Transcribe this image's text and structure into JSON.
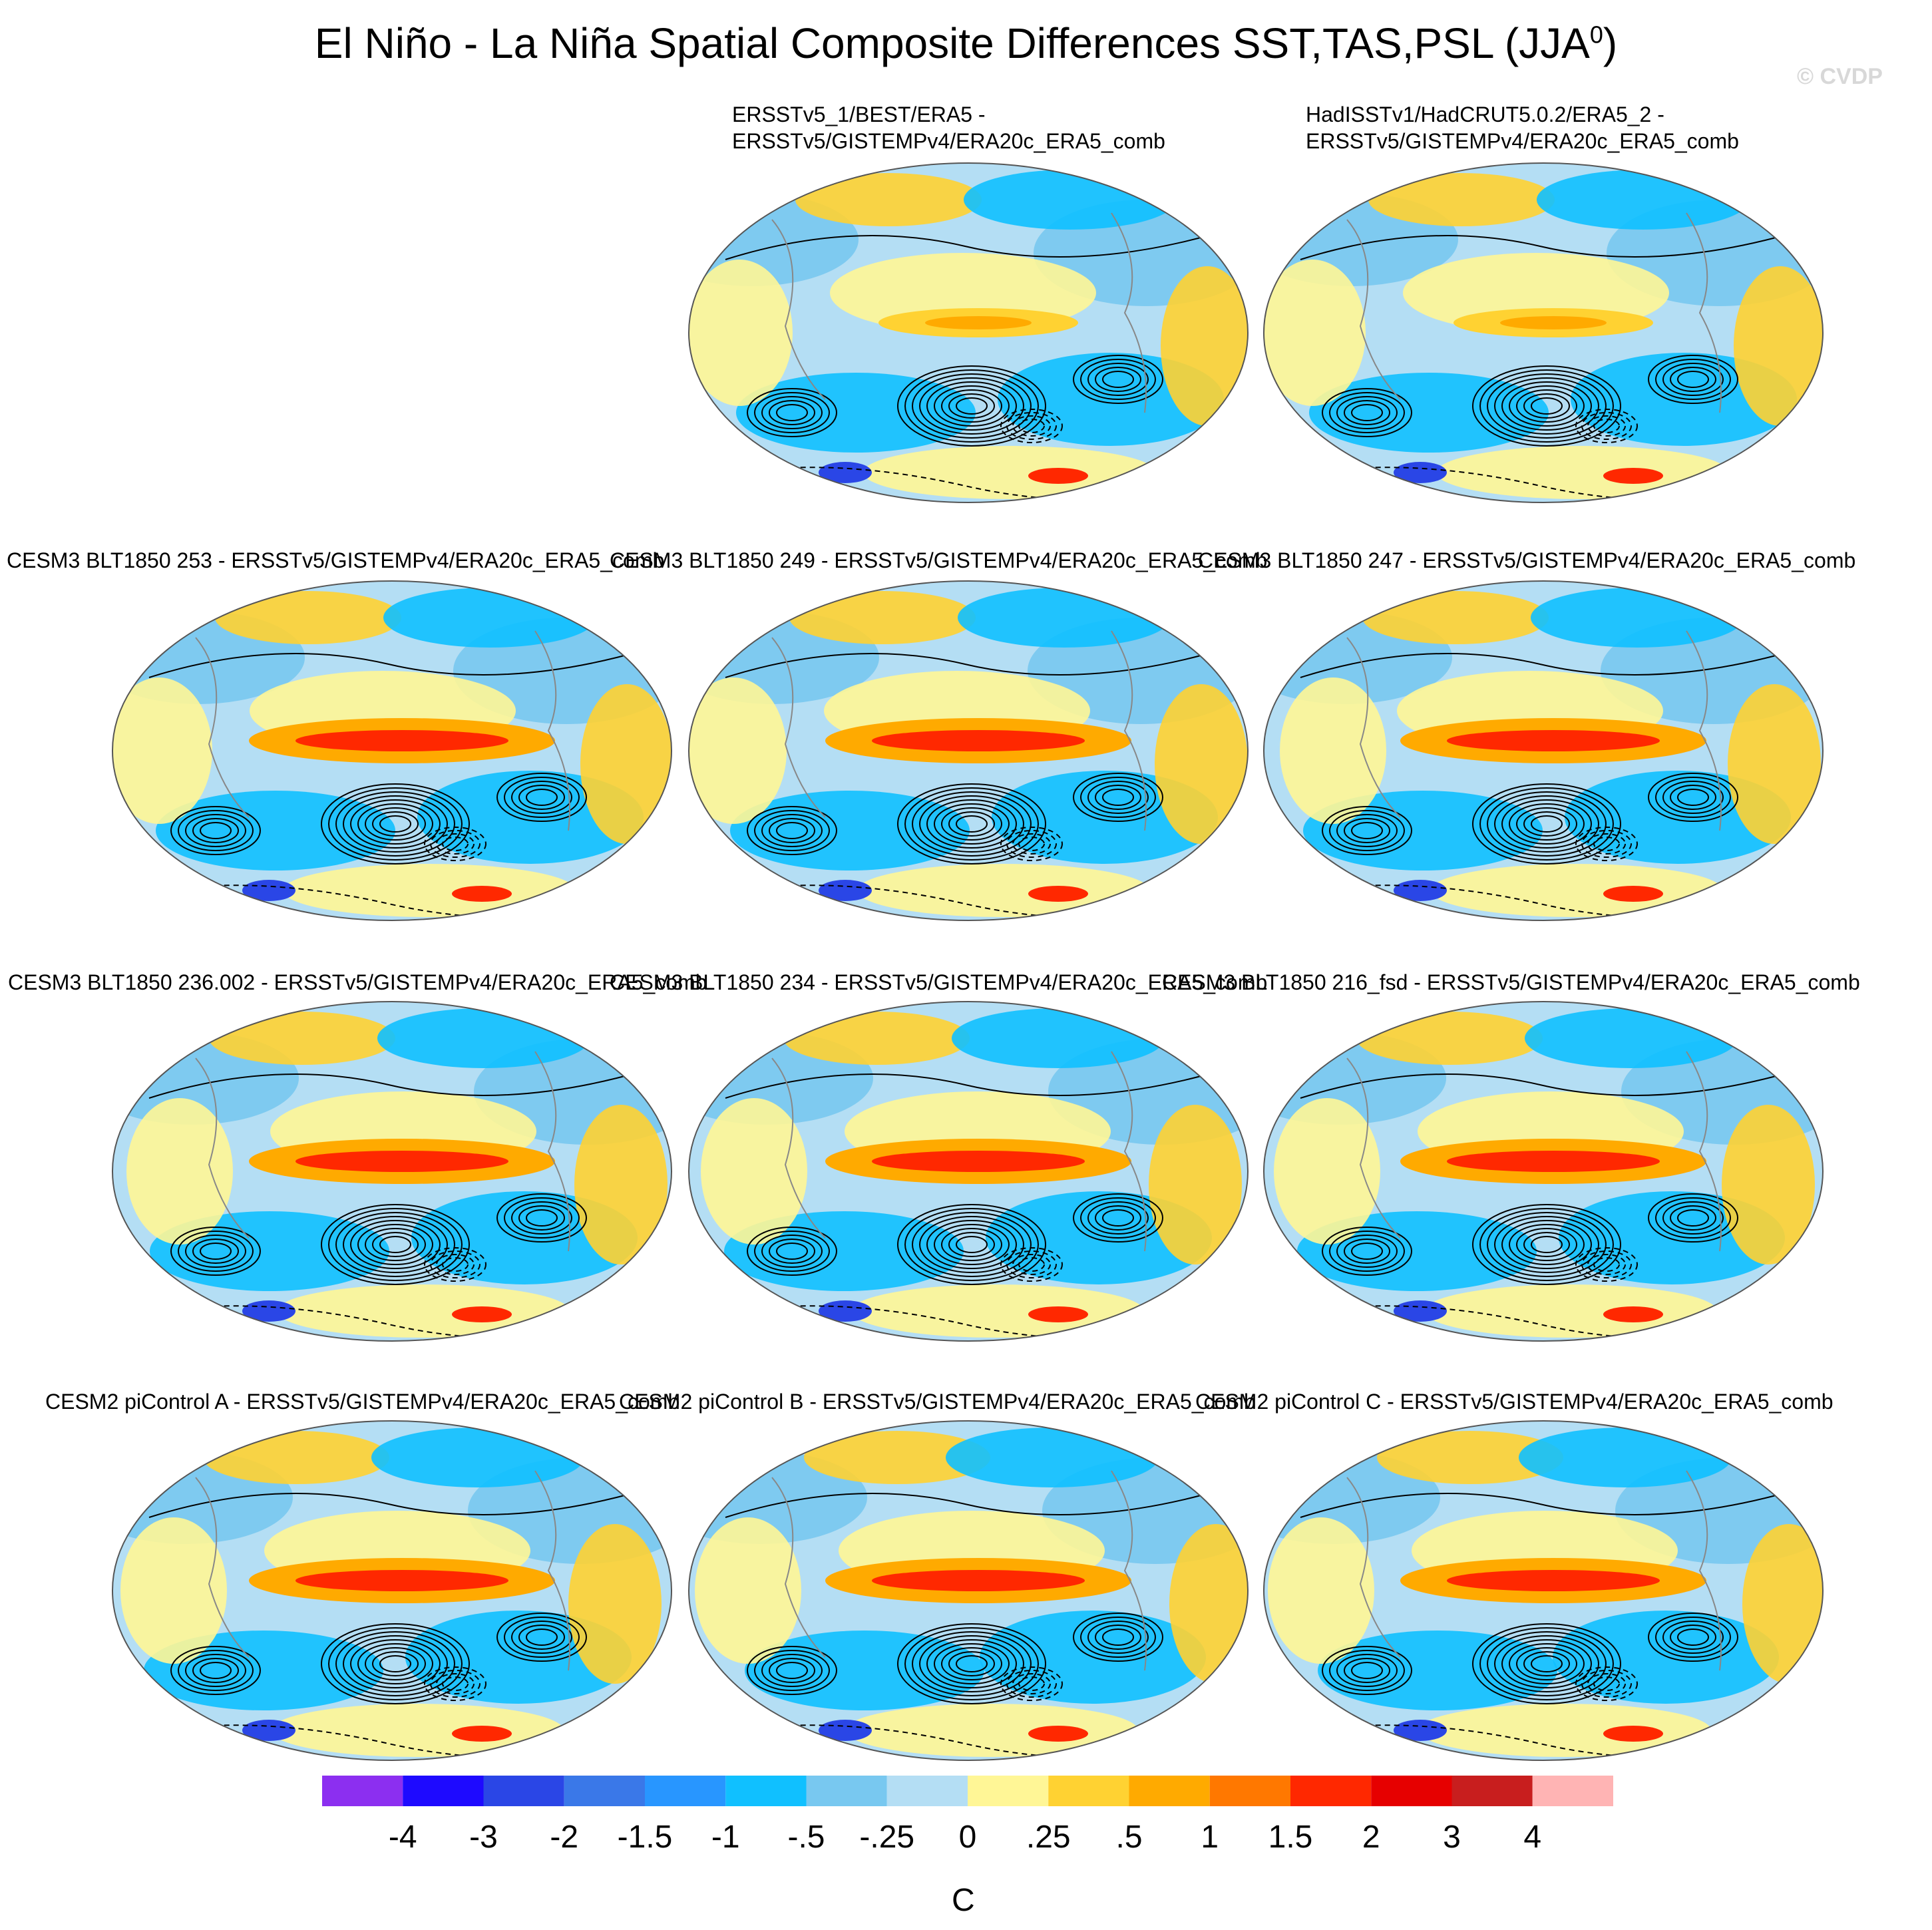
{
  "title": "El Niño - La Niña Spatial Composite Differences SST,TAS,PSL (JJA",
  "title_superscript": "0",
  "title_suffix": ")",
  "credit": "© CVDP",
  "panels": [
    {
      "title_line1": "ERSSTv5_1/BEST/ERA5 -",
      "title_line2": "ERSSTv5/GISTEMPv4/ERA20c_ERA5_comb"
    },
    {
      "title_line1": "HadISSTv1/HadCRUT5.0.2/ERA5_2 -",
      "title_line2": "ERSSTv5/GISTEMPv4/ERA20c_ERA5_comb"
    },
    {
      "title": "CESM3 BLT1850 253 - ERSSTv5/GISTEMPv4/ERA20c_ERA5_comb"
    },
    {
      "title": "CESM3 BLT1850 249 - ERSSTv5/GISTEMPv4/ERA20c_ERA5_comb"
    },
    {
      "title": "CESM3 BLT1850 247 - ERSSTv5/GISTEMPv4/ERA20c_ERA5_comb"
    },
    {
      "title": "CESM3 BLT1850 236.002 - ERSSTv5/GISTEMPv4/ERA20c_ERA5_comb"
    },
    {
      "title": "CESM3 BLT1850 234 - ERSSTv5/GISTEMPv4/ERA20c_ERA5_comb"
    },
    {
      "title": "CESM3 BLT1850 216_fsd - ERSSTv5/GISTEMPv4/ERA20c_ERA5_comb"
    },
    {
      "title": "CESM2 piControl A - ERSSTv5/GISTEMPv4/ERA20c_ERA5_comb"
    },
    {
      "title": "CESM2 piControl B - ERSSTv5/GISTEMPv4/ERA20c_ERA5_comb"
    },
    {
      "title": "CESM2 piControl C - ERSSTv5/GISTEMPv4/ERA20c_ERA5_comb"
    }
  ],
  "chart_data": {
    "type": "heatmap",
    "colorbar": {
      "colors": [
        "#8c2ff0",
        "#1e0aff",
        "#2a46e6",
        "#3a78e8",
        "#2896ff",
        "#10c0ff",
        "#78c8f0",
        "#b4def4",
        "#fff696",
        "#ffd232",
        "#ffaa00",
        "#ff7800",
        "#ff2800",
        "#e60000",
        "#c81e1e",
        "#ffb4b4"
      ],
      "tick_labels": [
        "-4",
        "-3",
        "-2",
        "-1.5",
        "-1",
        "-.5",
        "-.25",
        "0",
        ".25",
        ".5",
        "1",
        "1.5",
        "2",
        "3",
        "4"
      ],
      "unit": "C"
    },
    "fields": [
      "SST",
      "TAS",
      "PSL"
    ],
    "season": "JJA"
  }
}
